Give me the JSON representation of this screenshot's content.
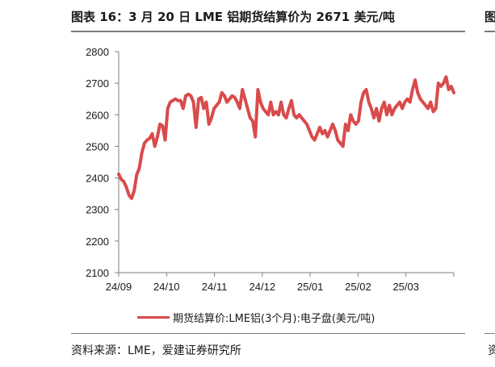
{
  "header": {
    "title": "图表 16：3 月 20 日 LME 铝期货结算价为 2671 美元/吨"
  },
  "footer": {
    "source": "资料来源：LME，爱建证券研究所"
  },
  "edge": {
    "right_top_glyph": "图",
    "right_bottom_glyph": "资"
  },
  "colors": {
    "line": "#d94b4b",
    "axis": "#7f7f7f",
    "text": "#1a1a1a"
  },
  "chart_data": {
    "type": "line",
    "title": "",
    "xlabel": "",
    "ylabel": "",
    "ylim": [
      2100,
      2800
    ],
    "yticks": [
      2100,
      2200,
      2300,
      2400,
      2500,
      2600,
      2700,
      2800
    ],
    "xticks": [
      "24/09",
      "24/10",
      "24/11",
      "24/12",
      "25/01",
      "25/02",
      "25/03"
    ],
    "grid": false,
    "legend_position": "bottom",
    "series": [
      {
        "name": "期货结算价:LME铝(3个月):电子盘(美元/吨)",
        "color": "#d94b4b",
        "values": [
          2412,
          2395,
          2388,
          2370,
          2345,
          2335,
          2360,
          2410,
          2430,
          2480,
          2510,
          2520,
          2525,
          2540,
          2500,
          2530,
          2570,
          2565,
          2520,
          2620,
          2640,
          2645,
          2650,
          2645,
          2645,
          2620,
          2660,
          2665,
          2660,
          2640,
          2560,
          2650,
          2655,
          2620,
          2640,
          2570,
          2590,
          2620,
          2630,
          2640,
          2670,
          2660,
          2640,
          2650,
          2660,
          2655,
          2640,
          2620,
          2680,
          2650,
          2620,
          2590,
          2580,
          2530,
          2680,
          2640,
          2620,
          2610,
          2600,
          2640,
          2600,
          2610,
          2600,
          2640,
          2600,
          2590,
          2620,
          2645,
          2600,
          2590,
          2600,
          2590,
          2580,
          2570,
          2550,
          2530,
          2520,
          2540,
          2560,
          2540,
          2550,
          2530,
          2550,
          2570,
          2550,
          2520,
          2510,
          2500,
          2570,
          2550,
          2600,
          2580,
          2570,
          2580,
          2640,
          2670,
          2680,
          2640,
          2620,
          2590,
          2620,
          2580,
          2620,
          2640,
          2600,
          2630,
          2600,
          2620,
          2630,
          2640,
          2620,
          2640,
          2650,
          2640,
          2680,
          2710,
          2670,
          2650,
          2640,
          2630,
          2620,
          2640,
          2610,
          2620,
          2700,
          2690,
          2700,
          2720,
          2680,
          2690,
          2670
        ]
      }
    ]
  }
}
